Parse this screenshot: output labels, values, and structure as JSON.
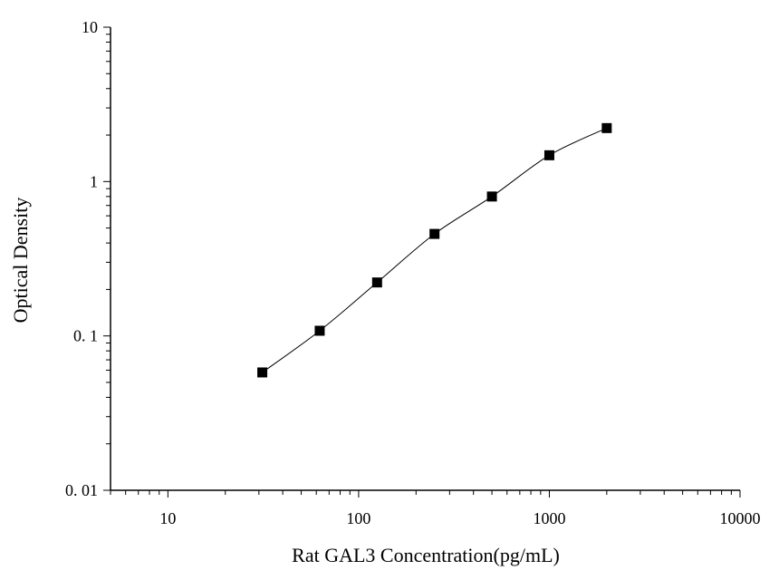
{
  "chart_data": {
    "type": "scatter",
    "title": "",
    "xlabel": "Rat GAL3 Concentration(pg/mL)",
    "ylabel": "Optical Density",
    "xscale": "log",
    "yscale": "log",
    "xlim": [
      5,
      10000
    ],
    "ylim": [
      0.01,
      10
    ],
    "x_tick_labels": [
      "10",
      "100",
      "1000",
      "10000"
    ],
    "y_tick_labels": [
      "0. 01",
      "0. 1",
      "1",
      "10"
    ],
    "grid": false,
    "legend": "none",
    "series": [
      {
        "marker": "square",
        "line": "smooth",
        "color": "#000000",
        "x": [
          31.25,
          62.5,
          125,
          250,
          500,
          1000,
          2000
        ],
        "y": [
          0.058,
          0.108,
          0.222,
          0.458,
          0.8,
          1.48,
          2.22
        ]
      }
    ]
  }
}
